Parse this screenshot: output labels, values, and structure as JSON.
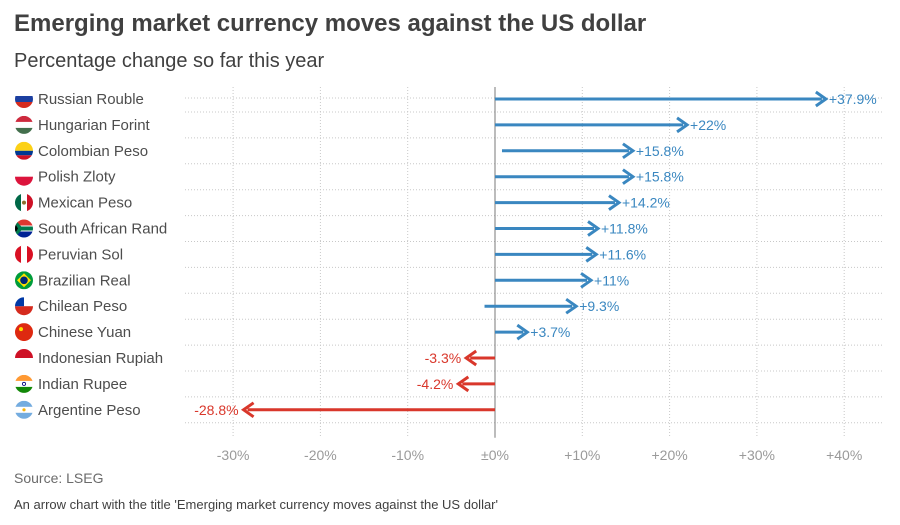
{
  "title": "Emerging market currency moves against the US dollar",
  "subtitle": "Percentage change so far this year",
  "source": "Source: LSEG",
  "caption": "An arrow chart with the title 'Emerging market currency moves against the US dollar'",
  "colors": {
    "positive": "#3a87c0",
    "negative": "#d9372b",
    "grid": "#c8c8c8",
    "text": "#4d4d4d"
  },
  "chart_data": {
    "type": "arrow",
    "title": "Emerging market currency moves against the US dollar",
    "subtitle": "Percentage change so far this year",
    "xlabel": "",
    "ylabel": "",
    "xlim": [
      -35,
      45
    ],
    "x_ticks": [
      -30,
      -20,
      -10,
      0,
      10,
      20,
      30,
      40
    ],
    "x_tick_labels": [
      "-30%",
      "-20%",
      "-10%",
      "±0%",
      "+10%",
      "+20%",
      "+30%",
      "+40%"
    ],
    "categories": [
      "Russian Rouble",
      "Hungarian Forint",
      "Colombian Peso",
      "Polish Zloty",
      "Mexican Peso",
      "South African Rand",
      "Peruvian Sol",
      "Brazilian Real",
      "Chilean Peso",
      "Chinese Yuan",
      "Indonesian Rupiah",
      "Indian Rupee",
      "Argentine Peso"
    ],
    "flags": [
      "russia-flag-icon",
      "hungary-flag-icon",
      "colombia-flag-icon",
      "poland-flag-icon",
      "mexico-flag-icon",
      "south-africa-flag-icon",
      "peru-flag-icon",
      "brazil-flag-icon",
      "chile-flag-icon",
      "china-flag-icon",
      "indonesia-flag-icon",
      "india-flag-icon",
      "argentina-flag-icon"
    ],
    "start": [
      0,
      0,
      0.8,
      0,
      0,
      0,
      0,
      0,
      -1.2,
      0,
      0,
      0,
      0
    ],
    "values": [
      37.9,
      22,
      15.8,
      15.8,
      14.2,
      11.8,
      11.6,
      11,
      9.3,
      3.7,
      -3.3,
      -4.2,
      -28.8
    ],
    "value_labels": [
      "+37.9%",
      "+22%",
      "+15.8%",
      "+15.8%",
      "+14.2%",
      "+11.8%",
      "+11.6%",
      "+11%",
      "+9.3%",
      "+3.7%",
      "-3.3%",
      "-4.2%",
      "-28.8%"
    ]
  }
}
